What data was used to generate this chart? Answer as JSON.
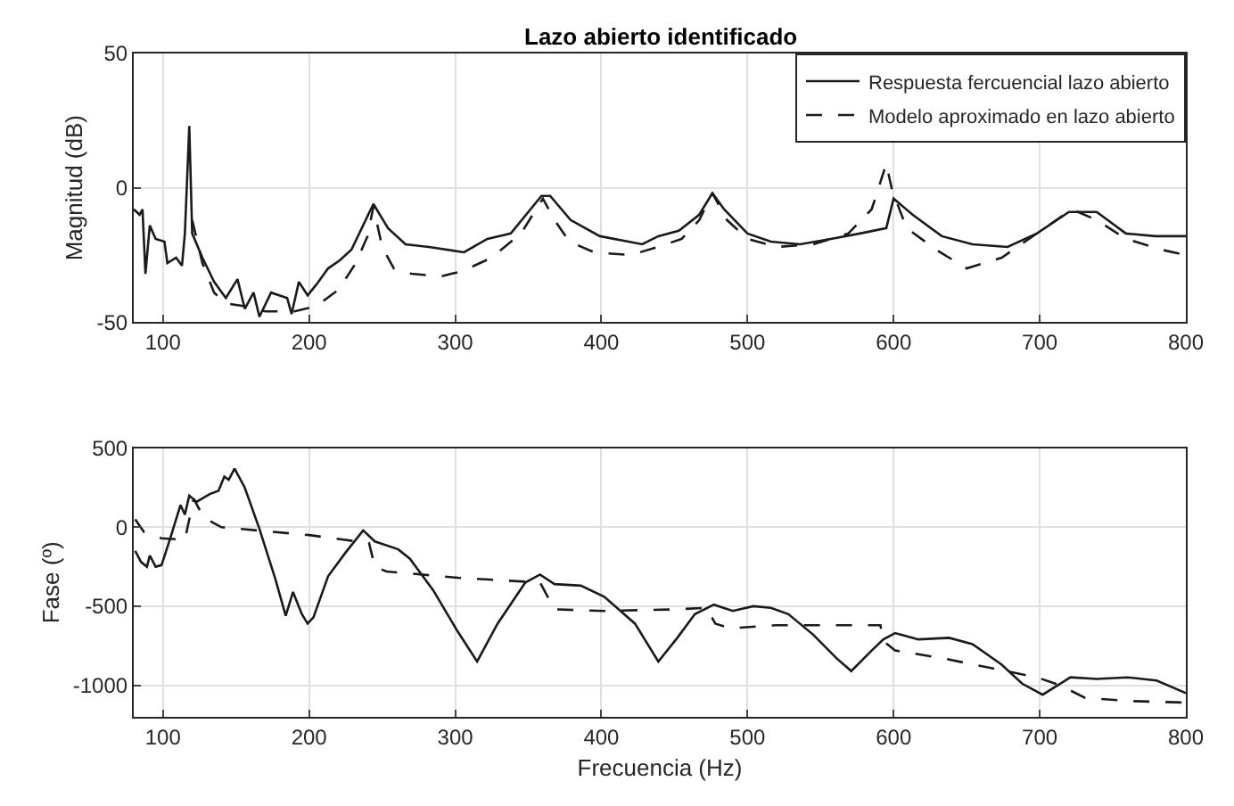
{
  "chart_data": [
    {
      "type": "line",
      "title": "Lazo abierto identificado",
      "ylabel": "Magnitud (dB)",
      "xlim": [
        80,
        800
      ],
      "xticks": [
        100,
        200,
        300,
        400,
        500,
        600,
        700,
        800
      ],
      "ylim": [
        -50,
        50
      ],
      "yticks": [
        -50,
        0,
        50
      ],
      "grid": true,
      "legend": "top right",
      "series": [
        {
          "name": "Respuesta fercuencial lazo abierto",
          "color": "#1a1a1a",
          "line_style": "solid",
          "x": [
            80,
            84,
            86,
            88,
            91,
            95,
            101,
            103,
            109,
            113,
            115,
            118,
            120,
            127,
            135,
            143,
            151,
            156,
            162,
            166,
            174,
            185,
            188,
            193,
            199,
            205,
            213,
            221,
            229,
            244,
            254,
            266,
            282,
            306,
            322,
            338,
            359,
            365,
            379,
            399,
            428,
            439,
            453,
            467,
            476,
            484,
            500,
            516,
            536,
            557,
            577,
            595,
            600,
            613,
            633,
            654,
            678,
            698,
            720,
            739,
            759,
            779,
            800
          ],
          "values": [
            -8,
            -10,
            -8,
            -32,
            -14,
            -19,
            -20,
            -28,
            -26,
            -29,
            -17,
            23,
            -17,
            -26,
            -35,
            -41,
            -34,
            -45,
            -39,
            -48,
            -39,
            -41,
            -47,
            -35,
            -40,
            -36,
            -30,
            -27,
            -23,
            -6,
            -15,
            -21,
            -22,
            -24,
            -19,
            -17,
            -3,
            -3,
            -12,
            -18,
            -21,
            -18,
            -16,
            -10,
            -2,
            -8,
            -17,
            -20,
            -21,
            -19,
            -17,
            -15,
            -4,
            -10,
            -18,
            -21,
            -22,
            -17,
            -9,
            -9,
            -17,
            -18,
            -18
          ]
        },
        {
          "name": "Modelo aproximado en lazo abierto",
          "color": "#1a1a1a",
          "line_style": "dashed",
          "x": [
            120,
            127,
            135,
            143,
            155,
            170,
            190,
            205,
            220,
            232,
            240,
            244,
            250,
            258,
            270,
            290,
            305,
            325,
            345,
            360,
            368,
            378,
            395,
            420,
            439,
            455,
            467,
            476,
            486,
            500,
            520,
            545,
            569,
            585,
            595,
            599,
            609,
            629,
            650,
            674,
            698,
            722,
            739,
            759,
            783,
            800
          ],
          "values": [
            -12,
            -28,
            -39,
            -43,
            -44,
            -46,
            -46,
            -44,
            -38,
            -28,
            -18,
            -7,
            -22,
            -30,
            -32,
            -33,
            -31,
            -26,
            -17,
            -4,
            -12,
            -20,
            -24,
            -25,
            -22,
            -19,
            -12,
            -2,
            -12,
            -19,
            -22,
            -21,
            -17,
            -8,
            9,
            -1,
            -15,
            -23,
            -30,
            -26,
            -17,
            -8,
            -12,
            -19,
            -23,
            -25
          ]
        }
      ]
    },
    {
      "type": "line",
      "ylabel": "Fase (º)",
      "xlabel": "Frecuencia (Hz)",
      "xlim": [
        80,
        800
      ],
      "xticks": [
        100,
        200,
        300,
        400,
        500,
        600,
        700,
        800
      ],
      "ylim": [
        -1200,
        500
      ],
      "yticks": [
        -1000,
        -500,
        0,
        500
      ],
      "grid": true,
      "series": [
        {
          "color": "#1a1a1a",
          "line_style": "solid",
          "x": [
            81,
            85,
            89,
            91,
            95,
            99,
            105,
            112,
            115,
            118,
            123,
            132,
            138,
            142,
            145,
            149,
            156,
            166,
            177,
            184,
            189,
            195,
            199,
            203,
            213,
            225,
            237,
            245,
            261,
            269,
            285,
            301,
            315,
            329,
            348,
            358,
            368,
            386,
            402,
            423,
            439,
            452,
            464,
            477,
            490,
            504,
            516,
            528,
            545,
            561,
            571,
            585,
            593,
            601,
            617,
            638,
            654,
            674,
            688,
            702,
            721,
            739,
            760,
            780,
            800
          ],
          "values": [
            -150,
            -220,
            -250,
            -180,
            -250,
            -240,
            -70,
            140,
            80,
            200,
            160,
            210,
            230,
            320,
            300,
            370,
            250,
            -10,
            -330,
            -560,
            -410,
            -550,
            -610,
            -570,
            -310,
            -160,
            -20,
            -90,
            -140,
            -200,
            -400,
            -650,
            -850,
            -610,
            -350,
            -300,
            -360,
            -370,
            -440,
            -610,
            -850,
            -700,
            -550,
            -490,
            -530,
            -500,
            -510,
            -550,
            -680,
            -830,
            -910,
            -780,
            -710,
            -670,
            -710,
            -700,
            -740,
            -870,
            -990,
            -1060,
            -950,
            -960,
            -950,
            -970,
            -1050
          ]
        },
        {
          "color": "#1a1a1a",
          "line_style": "dashed",
          "x": [
            81,
            87,
            99,
            115,
            121,
            128,
            140,
            200,
            241,
            245,
            253,
            302,
            358,
            368,
            402,
            451,
            472,
            478,
            488,
            520,
            561,
            591,
            593,
            601,
            634,
            666,
            698,
            714,
            731,
            763,
            800
          ],
          "values": [
            50,
            -30,
            -70,
            -80,
            180,
            60,
            0,
            -50,
            -100,
            -250,
            -280,
            -320,
            -350,
            -520,
            -530,
            -520,
            -510,
            -610,
            -640,
            -620,
            -620,
            -620,
            -720,
            -780,
            -830,
            -890,
            -950,
            -1000,
            -1080,
            -1100,
            -1110
          ]
        }
      ]
    }
  ]
}
